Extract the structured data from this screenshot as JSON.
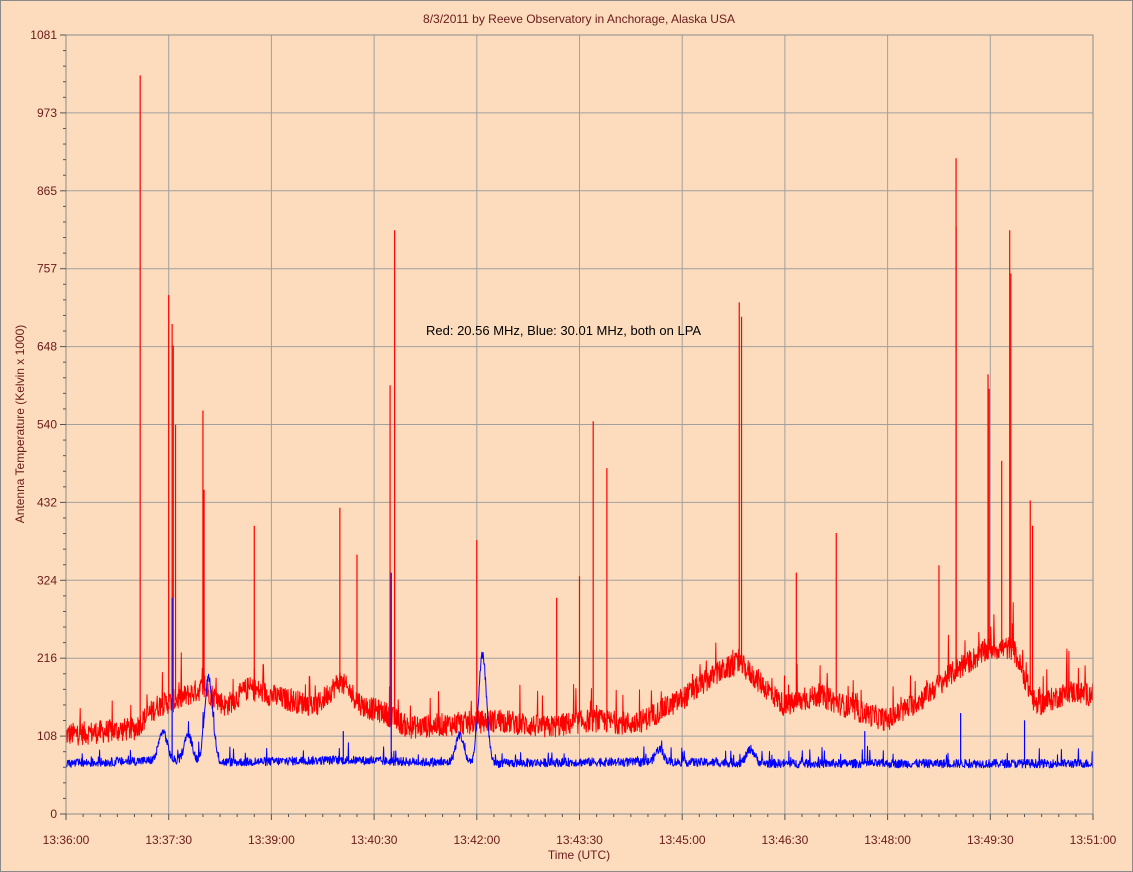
{
  "chart_data": {
    "type": "line",
    "title": "8/3/2011  by  Reeve Observatory  in  Anchorage, Alaska  USA",
    "xlabel": "Time (UTC)",
    "ylabel": "Antenna Temperature (Kelvin x 1000)",
    "annotation": "Red: 20.56 MHz, Blue: 30.01 MHz, both on LPA",
    "x_tick_labels": [
      "13:36:00",
      "13:37:30",
      "13:39:00",
      "13:40:30",
      "13:42:00",
      "13:43:30",
      "13:45:00",
      "13:46:30",
      "13:48:00",
      "13:49:30",
      "13:51:00"
    ],
    "y_tick_labels": [
      "0",
      "108",
      "216",
      "324",
      "432",
      "540",
      "648",
      "757",
      "865",
      "973",
      "1081"
    ],
    "xlim": [
      "13:36:00",
      "13:51:00"
    ],
    "ylim": [
      0,
      1081
    ],
    "grid": true,
    "colors": {
      "background": "#fcdcbc",
      "grid": "#a0a0a0",
      "text": "#6b1a1a",
      "red_series": "#ff0000",
      "blue_series": "#0000ff"
    },
    "series": [
      {
        "name": "Red: 20.56 MHz",
        "color": "#ff0000",
        "baseline": [
          [
            "13:36:00",
            110
          ],
          [
            "13:37:00",
            118
          ],
          [
            "13:37:20",
            150
          ],
          [
            "13:37:40",
            160
          ],
          [
            "13:38:00",
            175
          ],
          [
            "13:38:20",
            150
          ],
          [
            "13:38:40",
            175
          ],
          [
            "13:39:10",
            160
          ],
          [
            "13:39:40",
            150
          ],
          [
            "13:40:00",
            185
          ],
          [
            "13:40:20",
            150
          ],
          [
            "13:40:40",
            140
          ],
          [
            "13:41:00",
            120
          ],
          [
            "13:41:40",
            125
          ],
          [
            "13:42:20",
            130
          ],
          [
            "13:43:00",
            120
          ],
          [
            "13:43:40",
            130
          ],
          [
            "13:44:20",
            125
          ],
          [
            "13:45:00",
            160
          ],
          [
            "13:45:30",
            195
          ],
          [
            "13:45:50",
            210
          ],
          [
            "13:46:10",
            180
          ],
          [
            "13:46:30",
            150
          ],
          [
            "13:47:00",
            165
          ],
          [
            "13:47:30",
            145
          ],
          [
            "13:48:00",
            130
          ],
          [
            "13:48:30",
            160
          ],
          [
            "13:49:00",
            200
          ],
          [
            "13:49:30",
            230
          ],
          [
            "13:49:50",
            230
          ],
          [
            "13:50:10",
            150
          ],
          [
            "13:50:40",
            170
          ],
          [
            "13:51:00",
            165
          ]
        ],
        "spikes": [
          [
            "13:37:05",
            1025
          ],
          [
            "13:37:30",
            720
          ],
          [
            "13:37:33",
            680
          ],
          [
            "13:37:34",
            650
          ],
          [
            "13:37:36",
            540
          ],
          [
            "13:38:00",
            560
          ],
          [
            "13:38:01",
            450
          ],
          [
            "13:38:45",
            400
          ],
          [
            "13:40:00",
            425
          ],
          [
            "13:40:15",
            360
          ],
          [
            "13:40:44",
            595
          ],
          [
            "13:40:48",
            810
          ],
          [
            "13:42:00",
            380
          ],
          [
            "13:43:10",
            300
          ],
          [
            "13:43:30",
            330
          ],
          [
            "13:43:42",
            545
          ],
          [
            "13:43:54",
            480
          ],
          [
            "13:45:50",
            710
          ],
          [
            "13:45:52",
            690
          ],
          [
            "13:46:40",
            335
          ],
          [
            "13:47:15",
            390
          ],
          [
            "13:48:45",
            345
          ],
          [
            "13:49:00",
            910
          ],
          [
            "13:49:00",
            815
          ],
          [
            "13:49:28",
            610
          ],
          [
            "13:49:29",
            590
          ],
          [
            "13:49:40",
            490
          ],
          [
            "13:49:47",
            810
          ],
          [
            "13:49:48",
            750
          ],
          [
            "13:50:05",
            435
          ],
          [
            "13:50:07",
            400
          ]
        ]
      },
      {
        "name": "Blue: 30.01 MHz",
        "color": "#0000ff",
        "baseline": [
          [
            "13:36:00",
            70
          ],
          [
            "13:37:30",
            75
          ],
          [
            "13:37:45",
            72
          ],
          [
            "13:38:30",
            72
          ],
          [
            "13:40:00",
            75
          ],
          [
            "13:42:00",
            70
          ],
          [
            "13:43:30",
            72
          ],
          [
            "13:45:00",
            72
          ],
          [
            "13:46:30",
            70
          ],
          [
            "13:48:00",
            70
          ],
          [
            "13:49:30",
            70
          ],
          [
            "13:51:00",
            70
          ]
        ],
        "humps": [
          [
            "13:37:25",
            115
          ],
          [
            "13:37:47",
            110
          ],
          [
            "13:38:05",
            190
          ],
          [
            "13:41:45",
            110
          ],
          [
            "13:42:05",
            220
          ],
          [
            "13:44:40",
            90
          ],
          [
            "13:46:00",
            90
          ]
        ],
        "spikes": [
          [
            "13:37:33",
            300
          ],
          [
            "13:40:45",
            335
          ],
          [
            "13:40:03",
            115
          ],
          [
            "13:49:04",
            140
          ],
          [
            "13:50:00",
            130
          ],
          [
            "13:47:40",
            115
          ]
        ]
      }
    ]
  }
}
